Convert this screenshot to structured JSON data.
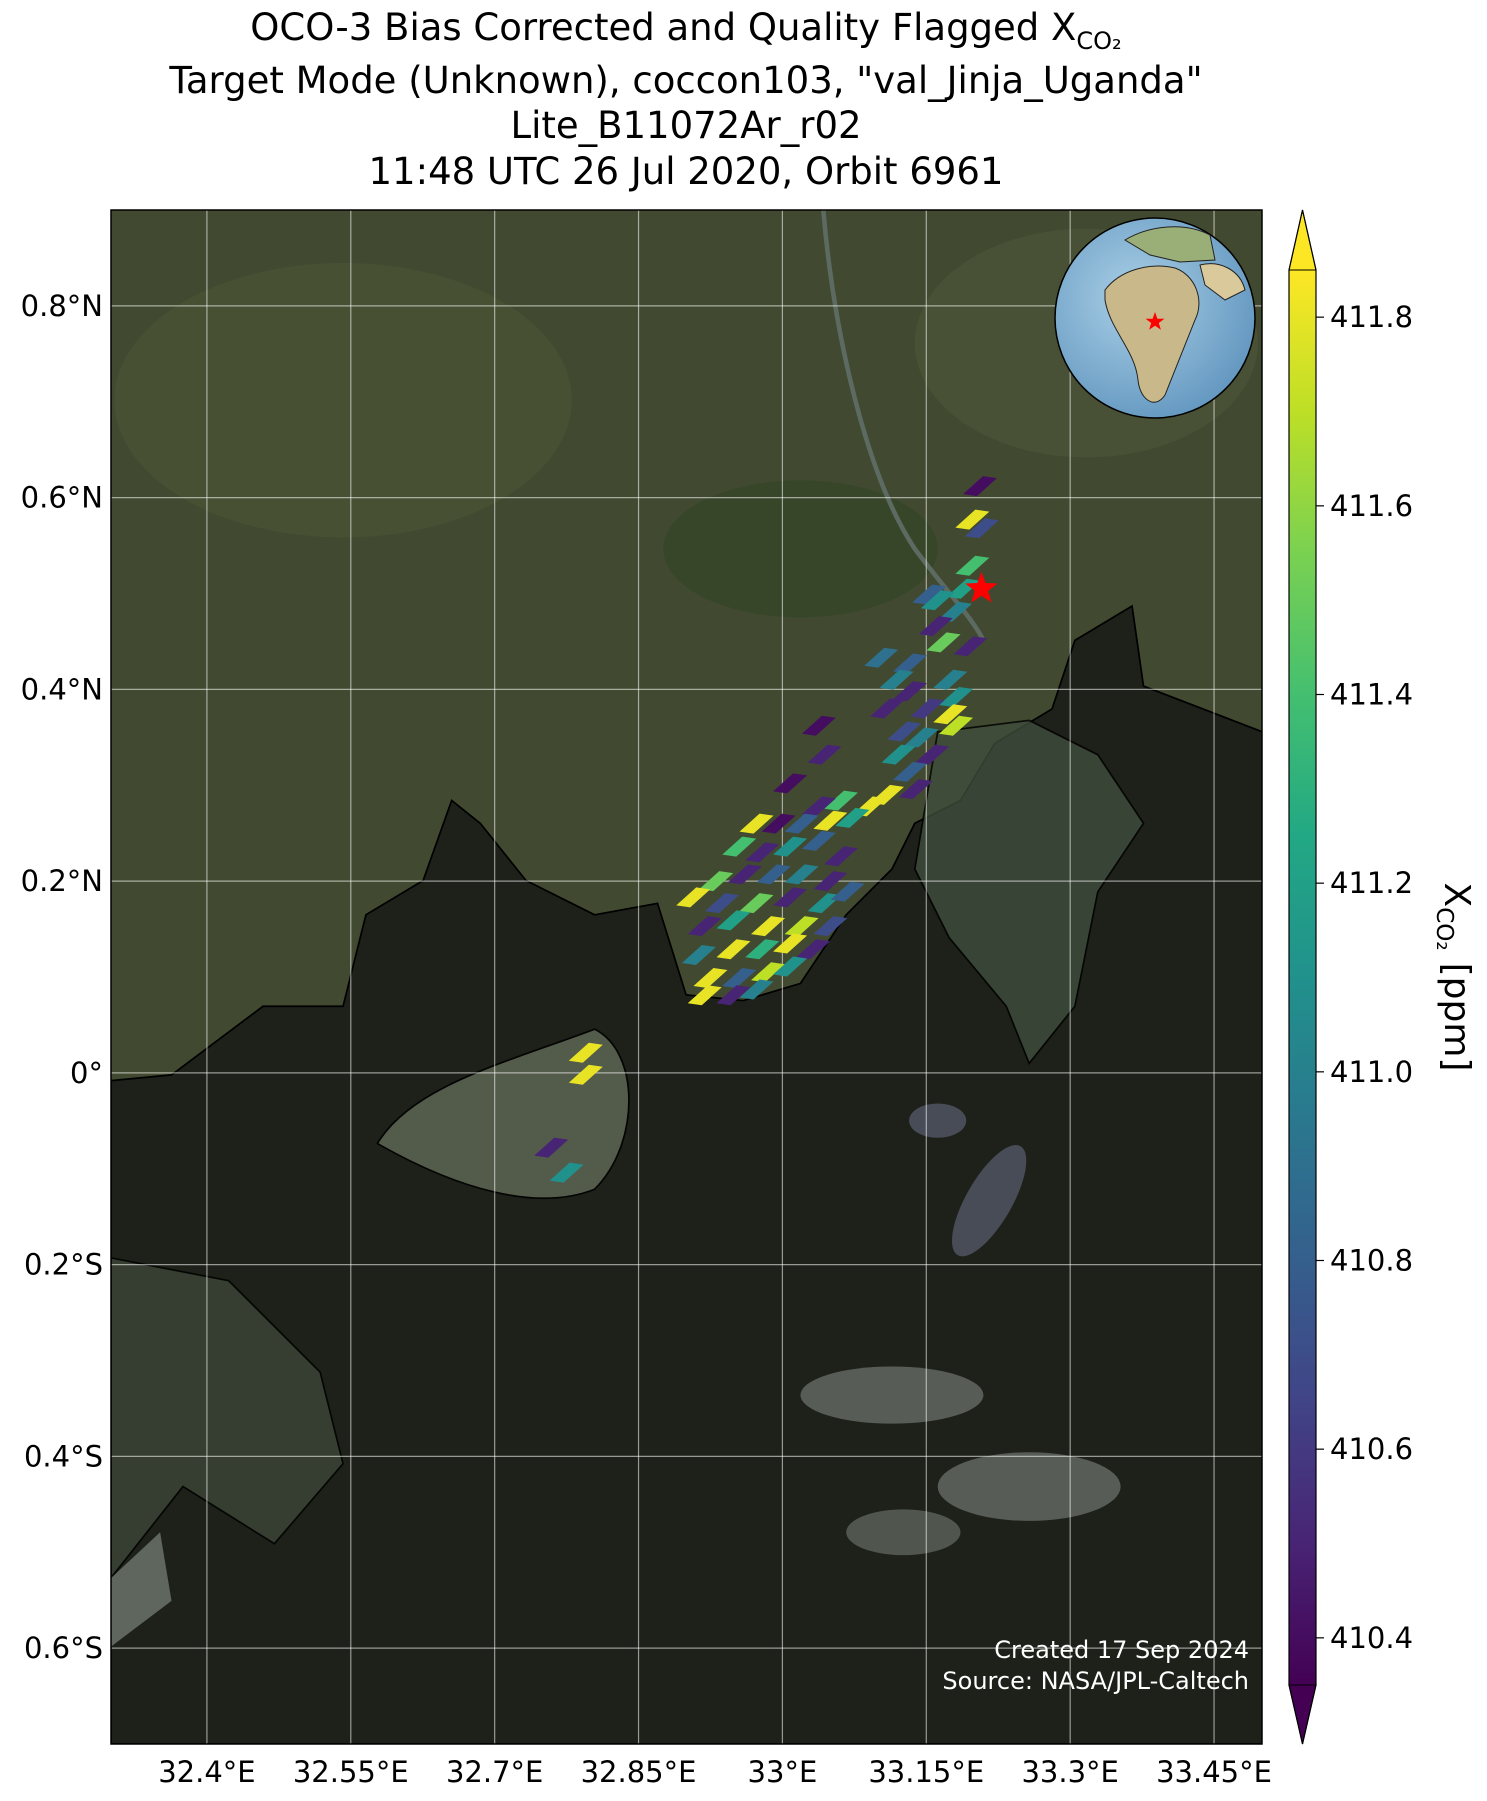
{
  "chart_data": {
    "type": "map",
    "title": [
      "OCO-3 Bias Corrected and Quality Flagged X",
      "Target Mode (Unknown), coccon103, \"val_Jinja_Uganda\"",
      "Lite_B11072Ar_r02",
      "11:48 UTC 26 Jul 2020, Orbit 6961"
    ],
    "title_subscript": "CO₂",
    "colorbar_label": "X",
    "colorbar_label_subscript": "CO₂",
    "colorbar_unit": "[ppm]",
    "colormap": "viridis",
    "clim": [
      410.35,
      411.85
    ],
    "cticks": [
      410.4,
      410.6,
      410.8,
      {
        "value": 411,
        "label": "411.0"
      },
      411.2,
      411.4,
      411.6,
      411.8
    ],
    "xlim": [
      32.3,
      33.5
    ],
    "ylim": [
      -0.7,
      0.9
    ],
    "xticks": [
      {
        "value": 32.4,
        "label": "32.4°E"
      },
      {
        "value": 32.55,
        "label": "32.55°E"
      },
      {
        "value": 32.7,
        "label": "32.7°E"
      },
      {
        "value": 32.85,
        "label": "32.85°E"
      },
      {
        "value": 33,
        "label": "33°E"
      },
      {
        "value": 33.15,
        "label": "33.15°E"
      },
      {
        "value": 33.3,
        "label": "33.3°E"
      },
      {
        "value": 33.45,
        "label": "33.45°E"
      }
    ],
    "yticks": [
      {
        "value": -0.6,
        "label": "0.6°S"
      },
      {
        "value": -0.4,
        "label": "0.4°S"
      },
      {
        "value": -0.2,
        "label": "0.2°S"
      },
      {
        "value": 0,
        "label": "0°"
      },
      {
        "value": 0.2,
        "label": "0.2°N"
      },
      {
        "value": 0.4,
        "label": "0.4°N"
      },
      {
        "value": 0.6,
        "label": "0.6°N"
      },
      {
        "value": 0.8,
        "label": "0.8°N"
      }
    ],
    "grid": true,
    "site": {
      "lon": 33.2075,
      "lat": 0.505,
      "color": "#ff0000"
    },
    "soundings": {
      "lon": [
        33.206,
        33.198,
        33.208,
        33.198,
        33.189,
        33.153,
        33.162,
        33.18,
        33.16,
        33.168,
        33.196,
        33.103,
        33.133,
        33.119,
        33.175,
        33.133,
        33.109,
        33.181,
        33.151,
        33.175,
        33.181,
        33.038,
        33.127,
        33.145,
        33.121,
        33.156,
        33.044,
        33.133,
        33.008,
        33.109,
        33.139,
        33.091,
        33.061,
        33.038,
        33.073,
        33.05,
        33.02,
        32.996,
        32.973,
        33.038,
        33.008,
        32.979,
        32.955,
        33.061,
        32.931,
        32.961,
        32.991,
        33.02,
        33.05,
        32.907,
        32.937,
        32.973,
        33.008,
        33.044,
        33.068,
        32.919,
        32.949,
        32.985,
        33.02,
        33.05,
        32.913,
        32.949,
        32.979,
        33.008,
        33.032,
        32.925,
        32.955,
        32.985,
        33.008,
        32.919,
        32.949,
        32.973,
        32.795,
        32.795,
        32.759,
        32.775
      ],
      "lat": [
        0.612,
        0.577,
        0.568,
        0.529,
        0.505,
        0.499,
        0.493,
        0.481,
        0.466,
        0.449,
        0.445,
        0.433,
        0.427,
        0.41,
        0.41,
        0.398,
        0.38,
        0.392,
        0.38,
        0.374,
        0.362,
        0.362,
        0.356,
        0.35,
        0.332,
        0.332,
        0.332,
        0.314,
        0.302,
        0.29,
        0.296,
        0.278,
        0.284,
        0.278,
        0.266,
        0.263,
        0.26,
        0.26,
        0.26,
        0.242,
        0.236,
        0.23,
        0.236,
        0.226,
        0.2,
        0.207,
        0.207,
        0.207,
        0.2,
        0.183,
        0.177,
        0.177,
        0.183,
        0.177,
        0.189,
        0.153,
        0.159,
        0.153,
        0.153,
        0.153,
        0.123,
        0.129,
        0.129,
        0.135,
        0.129,
        0.099,
        0.099,
        0.105,
        0.111,
        0.081,
        0.081,
        0.087,
        0.021,
        -0.002,
        -0.078,
        -0.104
      ],
      "values": [
        410.4,
        411.8,
        410.7,
        411.4,
        411.2,
        410.8,
        411.1,
        411.0,
        410.5,
        411.5,
        410.5,
        410.9,
        410.8,
        411.0,
        411.0,
        410.5,
        410.5,
        411.1,
        410.6,
        411.8,
        411.7,
        410.4,
        410.7,
        411.0,
        411.1,
        410.5,
        410.5,
        410.8,
        410.4,
        411.8,
        410.5,
        411.8,
        411.4,
        410.5,
        411.2,
        411.8,
        410.8,
        410.4,
        411.8,
        410.8,
        411.1,
        410.5,
        411.4,
        410.5,
        411.5,
        410.5,
        410.8,
        411.0,
        410.5,
        411.8,
        410.7,
        411.5,
        410.5,
        411.1,
        410.8,
        410.5,
        411.2,
        411.8,
        411.7,
        410.7,
        411.0,
        411.8,
        411.3,
        411.8,
        410.5,
        411.8,
        410.8,
        411.7,
        411.1,
        411.8,
        410.5,
        411.0,
        411.8,
        411.8,
        410.5,
        411.1
      ]
    },
    "footer": [
      "Created 17 Sep 2024",
      "Source: NASA/JPL-Caltech"
    ]
  }
}
